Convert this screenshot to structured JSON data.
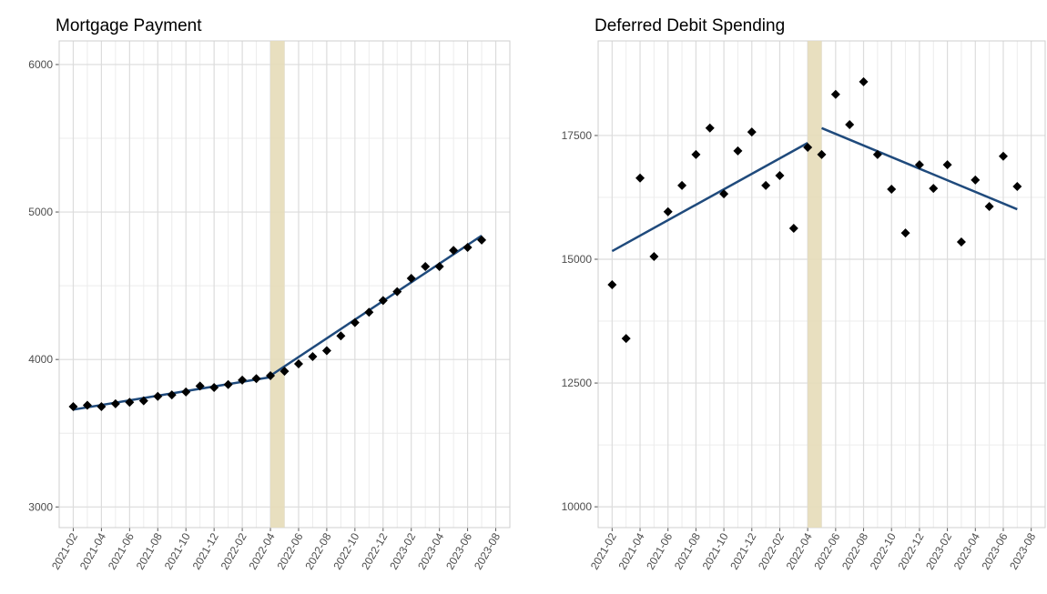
{
  "chart_data": [
    {
      "type": "scatter",
      "title": "Mortgage Payment",
      "x": [
        "2021-02",
        "2021-03",
        "2021-04",
        "2021-05",
        "2021-06",
        "2021-07",
        "2021-08",
        "2021-09",
        "2021-10",
        "2021-11",
        "2021-12",
        "2022-01",
        "2022-02",
        "2022-03",
        "2022-04",
        "2022-05",
        "2022-06",
        "2022-07",
        "2022-08",
        "2022-09",
        "2022-10",
        "2022-11",
        "2022-12",
        "2023-01",
        "2023-02",
        "2023-03",
        "2023-04",
        "2023-05",
        "2023-06",
        "2023-07"
      ],
      "values": [
        3680,
        3690,
        3680,
        3700,
        3710,
        3720,
        3750,
        3760,
        3780,
        3820,
        3810,
        3830,
        3860,
        3870,
        3890,
        3920,
        3970,
        4020,
        4060,
        4160,
        4250,
        4320,
        4400,
        4460,
        4550,
        4630,
        4630,
        4740,
        4760,
        4810
      ],
      "point_color": "#000000",
      "fit": [
        {
          "x": [
            "2021-02",
            "2022-04"
          ],
          "values": [
            3660,
            3880
          ]
        },
        {
          "x": [
            "2022-04",
            "2023-07"
          ],
          "values": [
            3890,
            4840
          ]
        }
      ],
      "fit_color": "#1f4a7c",
      "band": [
        "2022-04",
        "2022-05"
      ],
      "band_color": "#e6dcb8",
      "xlim": [
        "2021-01",
        "2023-09"
      ],
      "ylim": [
        2860,
        6160
      ],
      "xticks": [
        "2021-02",
        "2021-04",
        "2021-06",
        "2021-08",
        "2021-10",
        "2021-12",
        "2022-02",
        "2022-04",
        "2022-06",
        "2022-08",
        "2022-10",
        "2022-12",
        "2023-02",
        "2023-04",
        "2023-06",
        "2023-08"
      ],
      "yticks": [
        3000,
        4000,
        5000,
        6000
      ],
      "grid": true
    },
    {
      "type": "scatter",
      "title": "Deferred Debit Spending",
      "x": [
        "2021-02",
        "2021-03",
        "2021-04",
        "2021-05",
        "2021-06",
        "2021-07",
        "2021-08",
        "2021-09",
        "2021-10",
        "2021-11",
        "2021-12",
        "2022-01",
        "2022-02",
        "2022-03",
        "2022-04",
        "2022-05",
        "2022-06",
        "2022-07",
        "2022-08",
        "2022-09",
        "2022-10",
        "2022-11",
        "2022-12",
        "2023-01",
        "2023-02",
        "2023-03",
        "2023-04",
        "2023-05",
        "2023-06",
        "2023-07"
      ],
      "values": [
        14485,
        13400,
        16640,
        15055,
        15960,
        16490,
        17115,
        17650,
        16320,
        17190,
        17570,
        16490,
        16690,
        15625,
        17260,
        17115,
        18330,
        17720,
        18585,
        17115,
        16415,
        15530,
        16910,
        16430,
        16910,
        15350,
        16600,
        16065,
        17080,
        16470
      ],
      "point_color": "#000000",
      "fit": [
        {
          "x": [
            "2021-02",
            "2022-04"
          ],
          "values": [
            15165,
            17350
          ]
        },
        {
          "x": [
            "2022-05",
            "2023-07"
          ],
          "values": [
            17650,
            16010
          ]
        }
      ],
      "fit_color": "#1f4a7c",
      "band": [
        "2022-04",
        "2022-05"
      ],
      "band_color": "#e6dcb8",
      "xlim": [
        "2021-01",
        "2023-09"
      ],
      "ylim": [
        9580,
        19410
      ],
      "xticks": [
        "2021-02",
        "2021-04",
        "2021-06",
        "2021-08",
        "2021-10",
        "2021-12",
        "2022-02",
        "2022-04",
        "2022-06",
        "2022-08",
        "2022-10",
        "2022-12",
        "2023-02",
        "2023-04",
        "2023-06",
        "2023-08"
      ],
      "yticks": [
        10000,
        12500,
        15000,
        17500
      ],
      "grid": true
    }
  ]
}
